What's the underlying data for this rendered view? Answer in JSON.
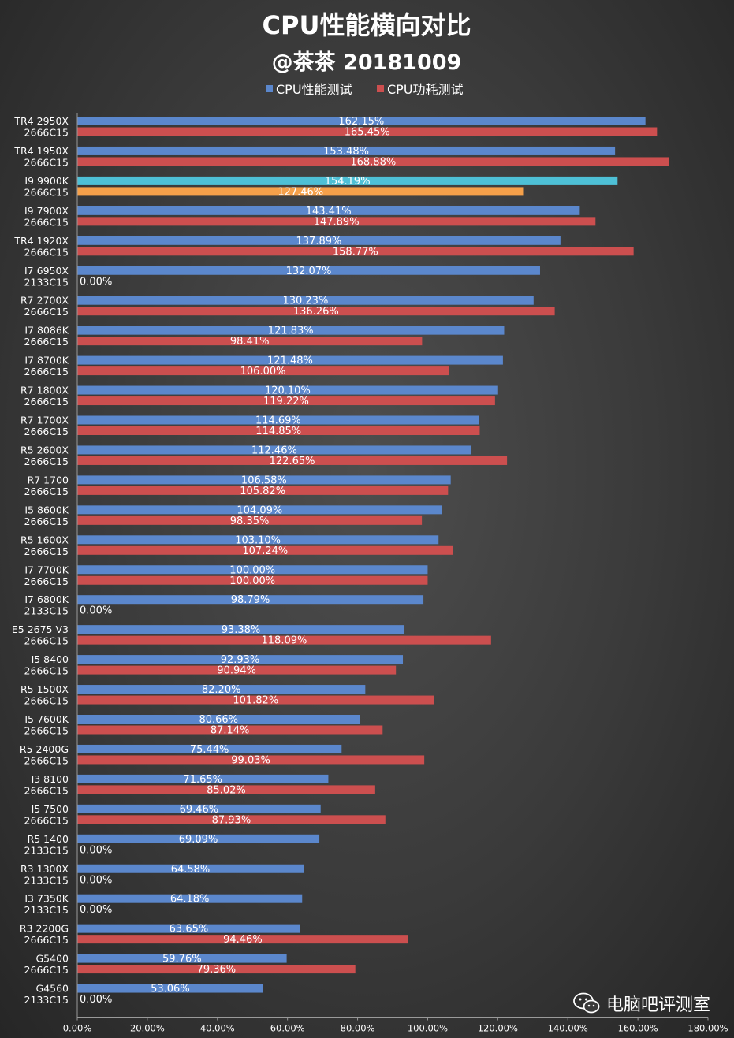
{
  "chart_data": {
    "type": "bar",
    "orientation": "horizontal",
    "title": "CPU性能横向对比",
    "subtitle": "@茶茶 20181009",
    "legend": [
      "CPU性能测试",
      "CPU功耗测试"
    ],
    "legend_position": "top-center",
    "xlim": [
      0,
      180
    ],
    "x_ticks": [
      "0.00%",
      "20.00%",
      "40.00%",
      "60.00%",
      "80.00%",
      "100.00%",
      "120.00%",
      "140.00%",
      "160.00%",
      "180.00%"
    ],
    "colors": {
      "performance": "#5b87cc",
      "power": "#cc4f4f",
      "highlight_performance": "#4ec0d6",
      "highlight_power": "#f5a04a"
    },
    "categories": [
      {
        "cpu": "TR4 2950X",
        "mem": "2666C15",
        "perf": 162.15,
        "perf_label": "162.15%",
        "power": 165.45,
        "power_label": "165.45%"
      },
      {
        "cpu": "TR4 1950X",
        "mem": "2666C15",
        "perf": 153.48,
        "perf_label": "153.48%",
        "power": 168.88,
        "power_label": "168.88%"
      },
      {
        "cpu": "I9 9900K",
        "mem": "2666C15",
        "perf": 154.19,
        "perf_label": "154.19%",
        "power": 127.46,
        "power_label": "127.46%",
        "highlight": true
      },
      {
        "cpu": "I9 7900X",
        "mem": "2666C15",
        "perf": 143.41,
        "perf_label": "143.41%",
        "power": 147.89,
        "power_label": "147.89%"
      },
      {
        "cpu": "TR4 1920X",
        "mem": "2666C15",
        "perf": 137.89,
        "perf_label": "137.89%",
        "power": 158.77,
        "power_label": "158.77%"
      },
      {
        "cpu": "I7 6950X",
        "mem": "2133C15",
        "perf": 132.07,
        "perf_label": "132.07%",
        "power": 0,
        "power_label": "0.00%"
      },
      {
        "cpu": "R7 2700X",
        "mem": "2666C15",
        "perf": 130.23,
        "perf_label": "130.23%",
        "power": 136.26,
        "power_label": "136.26%"
      },
      {
        "cpu": "I7 8086K",
        "mem": "2666C15",
        "perf": 121.83,
        "perf_label": "121.83%",
        "power": 98.41,
        "power_label": "98.41%"
      },
      {
        "cpu": "I7 8700K",
        "mem": "2666C15",
        "perf": 121.48,
        "perf_label": "121.48%",
        "power": 106.0,
        "power_label": "106.00%"
      },
      {
        "cpu": "R7 1800X",
        "mem": "2666C15",
        "perf": 120.1,
        "perf_label": "120.10%",
        "power": 119.22,
        "power_label": "119.22%"
      },
      {
        "cpu": "R7 1700X",
        "mem": "2666C15",
        "perf": 114.69,
        "perf_label": "114.69%",
        "power": 114.85,
        "power_label": "114.85%"
      },
      {
        "cpu": "R5 2600X",
        "mem": "2666C15",
        "perf": 112.46,
        "perf_label": "112.46%",
        "power": 122.65,
        "power_label": "122.65%"
      },
      {
        "cpu": "R7 1700",
        "mem": "2666C15",
        "perf": 106.58,
        "perf_label": "106.58%",
        "power": 105.82,
        "power_label": "105.82%"
      },
      {
        "cpu": "I5 8600K",
        "mem": "2666C15",
        "perf": 104.09,
        "perf_label": "104.09%",
        "power": 98.35,
        "power_label": "98.35%"
      },
      {
        "cpu": "R5 1600X",
        "mem": "2666C15",
        "perf": 103.1,
        "perf_label": "103.10%",
        "power": 107.24,
        "power_label": "107.24%"
      },
      {
        "cpu": "I7 7700K",
        "mem": "2666C15",
        "perf": 100.0,
        "perf_label": "100.00%",
        "power": 100.0,
        "power_label": "100.00%"
      },
      {
        "cpu": "I7 6800K",
        "mem": "2133C15",
        "perf": 98.79,
        "perf_label": "98.79%",
        "power": 0,
        "power_label": "0.00%"
      },
      {
        "cpu": "E5 2675 V3",
        "mem": "2666C15",
        "perf": 93.38,
        "perf_label": "93.38%",
        "power": 118.09,
        "power_label": "118.09%"
      },
      {
        "cpu": "I5 8400",
        "mem": "2666C15",
        "perf": 92.93,
        "perf_label": "92.93%",
        "power": 90.94,
        "power_label": "90.94%"
      },
      {
        "cpu": "R5 1500X",
        "mem": "2666C15",
        "perf": 82.2,
        "perf_label": "82.20%",
        "power": 101.82,
        "power_label": "101.82%"
      },
      {
        "cpu": "I5 7600K",
        "mem": "2666C15",
        "perf": 80.66,
        "perf_label": "80.66%",
        "power": 87.14,
        "power_label": "87.14%"
      },
      {
        "cpu": "R5 2400G",
        "mem": "2666C15",
        "perf": 75.44,
        "perf_label": "75.44%",
        "power": 99.03,
        "power_label": "99.03%"
      },
      {
        "cpu": "I3 8100",
        "mem": "2666C15",
        "perf": 71.65,
        "perf_label": "71.65%",
        "power": 85.02,
        "power_label": "85.02%"
      },
      {
        "cpu": "I5 7500",
        "mem": "2666C15",
        "perf": 69.46,
        "perf_label": "69.46%",
        "power": 87.93,
        "power_label": "87.93%"
      },
      {
        "cpu": "R5 1400",
        "mem": "2133C15",
        "perf": 69.09,
        "perf_label": "69.09%",
        "power": 0,
        "power_label": "0.00%"
      },
      {
        "cpu": "R3 1300X",
        "mem": "2133C15",
        "perf": 64.58,
        "perf_label": "64.58%",
        "power": 0,
        "power_label": "0.00%"
      },
      {
        "cpu": "I3 7350K",
        "mem": "2133C15",
        "perf": 64.18,
        "perf_label": "64.18%",
        "power": 0,
        "power_label": "0.00%"
      },
      {
        "cpu": "R3 2200G",
        "mem": "2666C15",
        "perf": 63.65,
        "perf_label": "63.65%",
        "power": 94.46,
        "power_label": "94.46%"
      },
      {
        "cpu": "G5400",
        "mem": "2666C15",
        "perf": 59.76,
        "perf_label": "59.76%",
        "power": 79.36,
        "power_label": "79.36%"
      },
      {
        "cpu": "G4560",
        "mem": "2133C15",
        "perf": 53.06,
        "perf_label": "53.06%",
        "power": 0,
        "power_label": "0.00%"
      }
    ]
  },
  "watermark": {
    "icon": "wechat-icon",
    "text": "电脑吧评测室"
  }
}
